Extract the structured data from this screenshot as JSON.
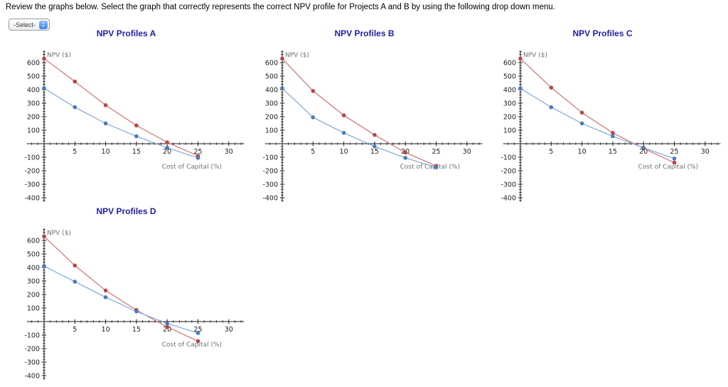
{
  "header": {
    "instruction": "Review the graphs below. Select the graph that correctly represents the correct NPV profile for Projects A and B by using the following drop down menu."
  },
  "select": {
    "value": "-Select-"
  },
  "colors": {
    "title": "#1f1fa3",
    "axis": "#1a1a1a",
    "tick_label": "#222222",
    "axis_label": "#707070",
    "red_line": "#cd7371",
    "red_marker": "#b84745",
    "blue_line": "#7fa8d9",
    "blue_marker": "#4b79b7"
  },
  "chart_data": [
    {
      "type": "line",
      "title": "NPV Profiles A",
      "xlabel": "Cost of Capital (%)",
      "ylabel": "NPV ($)",
      "x": [
        0,
        5,
        10,
        15,
        20,
        25
      ],
      "xticks": [
        5,
        10,
        15,
        20,
        25,
        30
      ],
      "yticks": [
        600,
        500,
        400,
        300,
        200,
        100,
        -100,
        -200,
        -300,
        -400
      ],
      "xlim": [
        -2.8,
        32.5
      ],
      "ylim": [
        -430,
        690
      ],
      "grid": false,
      "legend": "none",
      "series": [
        {
          "key": "red",
          "label": "red-series",
          "values": [
            630,
            460,
            285,
            135,
            10,
            -90
          ]
        },
        {
          "key": "blue",
          "label": "blue-series",
          "values": [
            410,
            270,
            150,
            55,
            -30,
            -105
          ]
        }
      ]
    },
    {
      "type": "line",
      "title": "NPV Profiles B",
      "xlabel": "Cost of Capital (%)",
      "ylabel": "NPV ($)",
      "x": [
        0,
        5,
        10,
        15,
        20,
        25
      ],
      "xticks": [
        5,
        10,
        15,
        20,
        25,
        30
      ],
      "yticks": [
        600,
        500,
        400,
        300,
        200,
        100,
        -100,
        -200,
        -300,
        -400
      ],
      "xlim": [
        -2.8,
        32.5
      ],
      "ylim": [
        -430,
        690
      ],
      "grid": false,
      "legend": "none",
      "series": [
        {
          "key": "red",
          "label": "red-series",
          "values": [
            630,
            390,
            210,
            65,
            -65,
            -165
          ]
        },
        {
          "key": "blue",
          "label": "blue-series",
          "values": [
            410,
            195,
            80,
            -20,
            -105,
            -175
          ]
        }
      ]
    },
    {
      "type": "line",
      "title": "NPV Profiles C",
      "xlabel": "Cost of Capital (%)",
      "ylabel": "NPV ($)",
      "x": [
        0,
        5,
        10,
        15,
        20,
        25
      ],
      "xticks": [
        5,
        10,
        15,
        20,
        25,
        30
      ],
      "yticks": [
        600,
        500,
        400,
        300,
        200,
        100,
        -100,
        -200,
        -300,
        -400
      ],
      "xlim": [
        -2.8,
        32.5
      ],
      "ylim": [
        -430,
        690
      ],
      "grid": false,
      "legend": "none",
      "series": [
        {
          "key": "red",
          "label": "red-series",
          "values": [
            630,
            415,
            230,
            80,
            -35,
            -140
          ]
        },
        {
          "key": "blue",
          "label": "blue-series",
          "values": [
            410,
            270,
            150,
            55,
            -30,
            -110
          ]
        }
      ]
    },
    {
      "type": "line",
      "title": "NPV Profiles D",
      "xlabel": "Cost of Capital (%)",
      "ylabel": "NPV ($)",
      "x": [
        0,
        5,
        10,
        15,
        20,
        25
      ],
      "xticks": [
        5,
        10,
        15,
        20,
        25,
        30
      ],
      "yticks": [
        600,
        500,
        400,
        300,
        200,
        100,
        -100,
        -200,
        -300,
        -400
      ],
      "xlim": [
        -2.8,
        32.5
      ],
      "ylim": [
        -430,
        690
      ],
      "grid": false,
      "legend": "none",
      "series": [
        {
          "key": "red",
          "label": "red-series",
          "values": [
            630,
            415,
            230,
            85,
            -40,
            -145
          ]
        },
        {
          "key": "blue",
          "label": "blue-series",
          "values": [
            410,
            295,
            180,
            75,
            -15,
            -85
          ]
        }
      ]
    }
  ]
}
